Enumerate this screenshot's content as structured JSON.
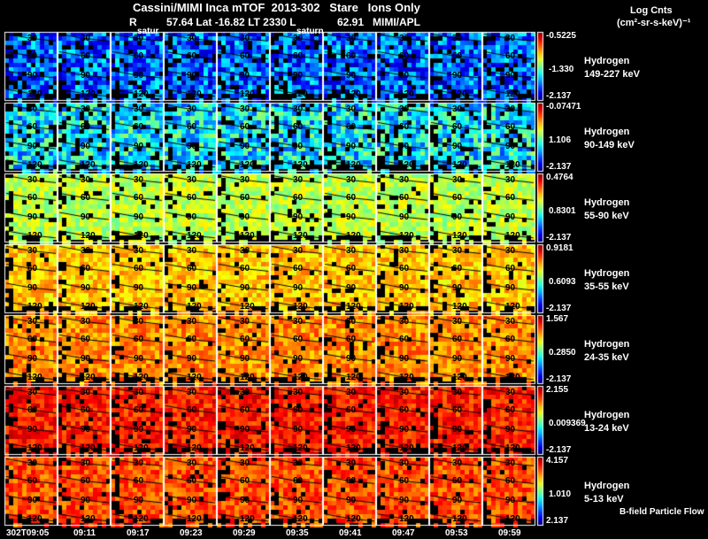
{
  "header": {
    "title": "Cassini/MIMI Inca mTOF  2013-302   Stare   Ions Only",
    "subtitle": "R          57.64 Lat -16.82 LT 2330 L              62.91   MIMI/APL",
    "units_line1": "Log Cnts",
    "units_line2": "(cm²-sr-s-keV)⁻¹"
  },
  "chart_data": {
    "type": "heatmap",
    "title": "Cassini/MIMI Inca mTOF  2013-302   Stare   Ions Only",
    "columns": [
      "302T09:05",
      "09:11",
      "09:17",
      "09:23",
      "09:29",
      "09:35",
      "09:41",
      "09:47",
      "09:53",
      "09:59"
    ],
    "contour_labels": [
      "30",
      "60",
      "90",
      "120"
    ],
    "planet_labels": [
      {
        "column": 2,
        "text": "satur"
      },
      {
        "column": 5,
        "text": "saturn"
      }
    ],
    "rows": [
      {
        "species": "Hydrogen",
        "energy": "149-227 keV",
        "cb_max": "-0.5225",
        "cb_mid": "-1.330",
        "cb_min": "-2.137",
        "mean_level": 0.22
      },
      {
        "species": "Hydrogen",
        "energy": "90-149 keV",
        "cb_max": "-0.07471",
        "cb_mid": "1.106",
        "cb_min": "-2.137",
        "mean_level": 0.36
      },
      {
        "species": "Hydrogen",
        "energy": "55-90 keV",
        "cb_max": "0.4764",
        "cb_mid": "0.8301",
        "cb_min": "-2.137",
        "mean_level": 0.56
      },
      {
        "species": "Hydrogen",
        "energy": "35-55 keV",
        "cb_max": "0.9181",
        "cb_mid": "0.6093",
        "cb_min": "-2.137",
        "mean_level": 0.68
      },
      {
        "species": "Hydrogen",
        "energy": "24-35 keV",
        "cb_max": "1.567",
        "cb_mid": "0.2850",
        "cb_min": "-2.137",
        "mean_level": 0.74
      },
      {
        "species": "Hydrogen",
        "energy": "13-24 keV",
        "cb_max": "2.155",
        "cb_mid": "0.009369",
        "cb_min": "-2.137",
        "mean_level": 0.85
      },
      {
        "species": "Hydrogen",
        "energy": "5-13 keV",
        "cb_max": "4.157",
        "cb_mid": "1.010",
        "cb_min": "2.137",
        "mean_level": 0.8
      }
    ],
    "footer_note": "B-field Particle Flow"
  }
}
